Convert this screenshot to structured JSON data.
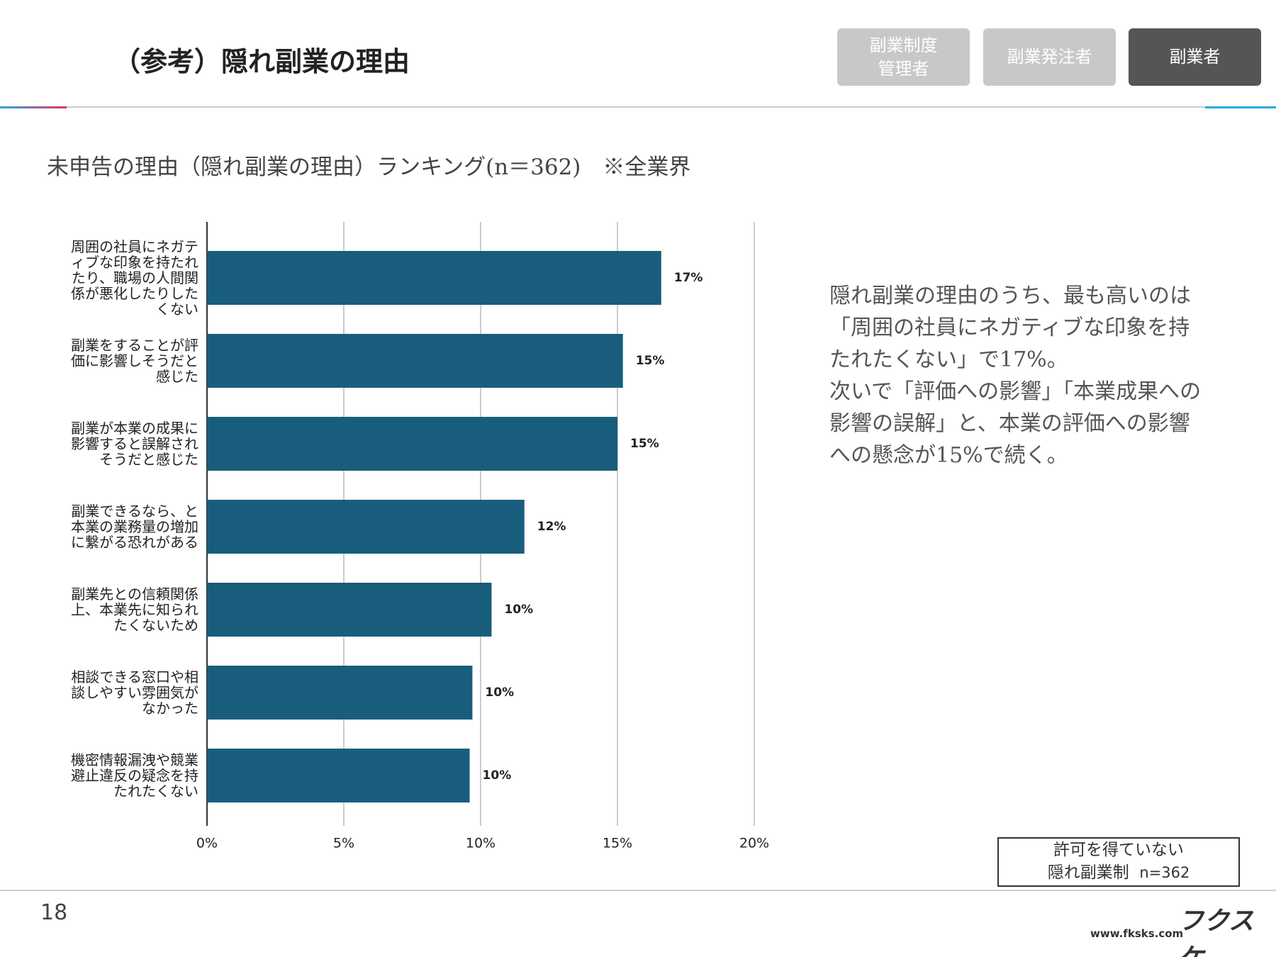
{
  "header": {
    "title": "（参考）隠れ副業の理由",
    "tabs": [
      "副業制度管理者",
      "副業発注者",
      "副業者"
    ]
  },
  "chart_data": {
    "type": "bar",
    "orientation": "horizontal",
    "title": "未申告の理由（隠れ副業の理由）ランキング(n＝362)　※全業界",
    "categories": [
      "周囲の社員にネガティブな印象を持たれたり、職場の人間関係が悪化したりしたくない",
      "副業をすることが評価に影響しそうだと感じた",
      "副業が本業の成果に影響すると誤解されそうだと感じた",
      "副業できるなら、と本業の業務量の増加に繋がる恐れがある",
      "副業先との信頼関係上、本業先に知られたくないため",
      "相談できる窓口や相談しやすい雰囲気がなかった",
      "機密情報漏洩や競業避止違反の疑念を持たれたくない"
    ],
    "values": [
      16.6,
      15.2,
      15.0,
      11.6,
      10.4,
      9.7,
      9.6
    ],
    "value_labels": [
      "17%",
      "15%",
      "15%",
      "12%",
      "10%",
      "10%",
      "10%"
    ],
    "color": "#185e7c",
    "xlim": [
      0,
      20
    ],
    "xticks": [
      {
        "value": 0,
        "label": "0%"
      },
      {
        "value": 5,
        "label": "5%"
      },
      {
        "value": 10,
        "label": "10%"
      },
      {
        "value": 15,
        "label": "15%"
      },
      {
        "value": 20,
        "label": "20%"
      }
    ],
    "grid": true
  },
  "description": [
    "隠れ副業の理由のうち、最も高いのは「周囲の社員にネガティブな印象を持たれたくない」で17%。",
    "次いで「評価への影響」「本業成果への影響の誤解」と、本業の評価への影響への懸念が15%で続く。"
  ],
  "legend_box": {
    "line1": "許可を得ていない",
    "line2": "隠れ副業制",
    "note": "n=362"
  },
  "footer": {
    "page": "18",
    "logo": "フクスケ",
    "url": "www.fksks.com"
  }
}
